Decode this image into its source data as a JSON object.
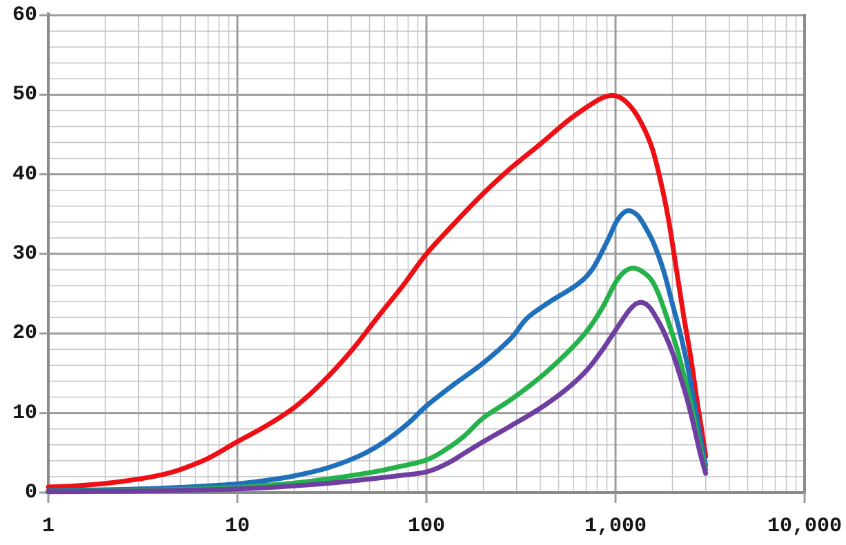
{
  "chart_data": {
    "type": "line",
    "title": "",
    "xlabel": "",
    "ylabel": "",
    "x_scale": "log",
    "x_range": [
      1,
      10000
    ],
    "y_range": [
      0,
      60
    ],
    "grid": "on",
    "legend": "none",
    "x_tick_values": [
      1,
      10,
      100,
      1000,
      10000
    ],
    "x_tick_labels": [
      "1",
      "10",
      "100",
      "1,000",
      "10,000"
    ],
    "y_tick_values": [
      0,
      10,
      20,
      30,
      40,
      50,
      60
    ],
    "y_tick_labels": [
      "0",
      "10",
      "20",
      "30",
      "40",
      "50",
      "60"
    ],
    "y_minor_step": 2,
    "x_minor_multiples": [
      2,
      3,
      4,
      5,
      6,
      7,
      8,
      9
    ],
    "colors": {
      "background": "#ffffff",
      "grid_minor": "#c4c4c4",
      "grid_major": "#9d9d9d",
      "axis": "#8a8a8a",
      "tick_text": "#161616"
    },
    "series": [
      {
        "name": "red-curve",
        "color": "#ee0f14",
        "peak": {
          "x": 975,
          "y": 49.9
        },
        "points": [
          [
            1,
            0.7
          ],
          [
            1.4,
            0.85
          ],
          [
            2,
            1.15
          ],
          [
            3,
            1.7
          ],
          [
            4,
            2.25
          ],
          [
            5,
            2.9
          ],
          [
            7,
            4.3
          ],
          [
            10,
            6.4
          ],
          [
            14,
            8.3
          ],
          [
            20,
            10.7
          ],
          [
            28,
            13.8
          ],
          [
            40,
            17.8
          ],
          [
            55,
            22
          ],
          [
            75,
            26
          ],
          [
            100,
            30
          ],
          [
            140,
            33.8
          ],
          [
            200,
            37.6
          ],
          [
            280,
            40.8
          ],
          [
            400,
            43.8
          ],
          [
            550,
            46.6
          ],
          [
            700,
            48.4
          ],
          [
            850,
            49.6
          ],
          [
            975,
            49.9
          ],
          [
            1100,
            49.4
          ],
          [
            1250,
            48
          ],
          [
            1400,
            46
          ],
          [
            1550,
            43.5
          ],
          [
            1700,
            40
          ],
          [
            1900,
            34.5
          ],
          [
            2100,
            28
          ],
          [
            2300,
            22
          ],
          [
            2500,
            17
          ],
          [
            2700,
            11.5
          ],
          [
            2850,
            8
          ],
          [
            3000,
            4.5
          ]
        ]
      },
      {
        "name": "blue-curve",
        "color": "#1f6fba",
        "peak": {
          "x": 1150,
          "y": 35.4
        },
        "points": [
          [
            1,
            0.25
          ],
          [
            2,
            0.35
          ],
          [
            3,
            0.45
          ],
          [
            5,
            0.65
          ],
          [
            7,
            0.85
          ],
          [
            10,
            1.1
          ],
          [
            15,
            1.6
          ],
          [
            20,
            2.1
          ],
          [
            30,
            3.1
          ],
          [
            45,
            4.7
          ],
          [
            60,
            6.4
          ],
          [
            80,
            8.7
          ],
          [
            100,
            10.9
          ],
          [
            140,
            13.6
          ],
          [
            200,
            16.3
          ],
          [
            280,
            19.4
          ],
          [
            340,
            21.9
          ],
          [
            450,
            24
          ],
          [
            615,
            26
          ],
          [
            750,
            28
          ],
          [
            900,
            31.5
          ],
          [
            1020,
            34.2
          ],
          [
            1150,
            35.4
          ],
          [
            1300,
            34.9
          ],
          [
            1450,
            33.2
          ],
          [
            1600,
            31.2
          ],
          [
            1800,
            27.8
          ],
          [
            2000,
            23.7
          ],
          [
            2200,
            20
          ],
          [
            2400,
            16
          ],
          [
            2600,
            11.5
          ],
          [
            2800,
            7.2
          ],
          [
            3000,
            3.4
          ]
        ]
      },
      {
        "name": "green-curve",
        "color": "#26b24b",
        "peak": {
          "x": 1250,
          "y": 28.2
        },
        "points": [
          [
            1,
            0.15
          ],
          [
            2,
            0.2
          ],
          [
            3,
            0.28
          ],
          [
            5,
            0.4
          ],
          [
            8,
            0.55
          ],
          [
            10,
            0.65
          ],
          [
            15,
            0.95
          ],
          [
            20,
            1.2
          ],
          [
            30,
            1.7
          ],
          [
            50,
            2.5
          ],
          [
            70,
            3.2
          ],
          [
            100,
            4.1
          ],
          [
            130,
            5.6
          ],
          [
            160,
            7.2
          ],
          [
            200,
            9.4
          ],
          [
            280,
            11.7
          ],
          [
            400,
            14.5
          ],
          [
            550,
            17.5
          ],
          [
            700,
            20.2
          ],
          [
            850,
            23.2
          ],
          [
            1000,
            26.4
          ],
          [
            1120,
            27.8
          ],
          [
            1250,
            28.2
          ],
          [
            1400,
            27.7
          ],
          [
            1550,
            26.7
          ],
          [
            1700,
            24.8
          ],
          [
            1900,
            21.5
          ],
          [
            2100,
            18.3
          ],
          [
            2300,
            14.8
          ],
          [
            2500,
            11.3
          ],
          [
            2700,
            7.5
          ],
          [
            2850,
            5
          ],
          [
            3000,
            2.9
          ]
        ]
      },
      {
        "name": "purple-curve",
        "color": "#6e3ea1",
        "peak": {
          "x": 1350,
          "y": 23.9
        },
        "points": [
          [
            1,
            0.1
          ],
          [
            2,
            0.15
          ],
          [
            3,
            0.2
          ],
          [
            5,
            0.28
          ],
          [
            8,
            0.38
          ],
          [
            10,
            0.45
          ],
          [
            15,
            0.65
          ],
          [
            20,
            0.85
          ],
          [
            30,
            1.15
          ],
          [
            50,
            1.7
          ],
          [
            70,
            2.1
          ],
          [
            100,
            2.6
          ],
          [
            130,
            3.7
          ],
          [
            160,
            5
          ],
          [
            200,
            6.4
          ],
          [
            280,
            8.4
          ],
          [
            400,
            10.6
          ],
          [
            550,
            13
          ],
          [
            700,
            15.3
          ],
          [
            850,
            17.9
          ],
          [
            1000,
            20.4
          ],
          [
            1200,
            23.1
          ],
          [
            1350,
            23.9
          ],
          [
            1500,
            23.4
          ],
          [
            1650,
            21.9
          ],
          [
            1800,
            20.2
          ],
          [
            2000,
            17.6
          ],
          [
            2200,
            14.6
          ],
          [
            2400,
            11.6
          ],
          [
            2600,
            8.3
          ],
          [
            2800,
            5
          ],
          [
            3000,
            2.4
          ]
        ]
      }
    ]
  }
}
